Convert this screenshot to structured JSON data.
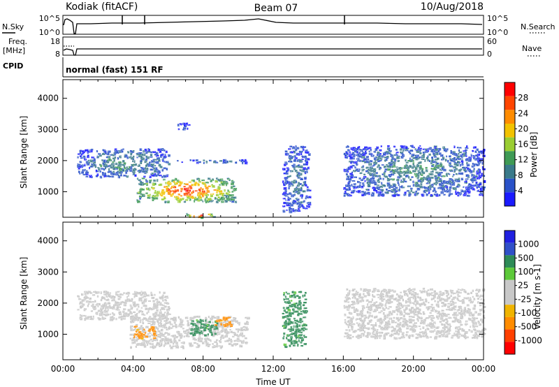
{
  "header": {
    "station": "Kodiak (fitACF)",
    "beam": "Beam 07",
    "date": "10/Aug/2018"
  },
  "nsky_panel": {
    "left_label": "N.Sky",
    "left_ticks": [
      "10^5",
      "10^0"
    ],
    "right_label": "N.Search",
    "right_ticks": [
      "10^5",
      "10^0"
    ]
  },
  "freq_panel": {
    "left_label_line1": "Freq.",
    "left_label_line2": "[MHz]",
    "left_ticks": [
      "18",
      "8"
    ],
    "right_label": "Nave",
    "right_ticks": [
      "60",
      "0"
    ]
  },
  "cpid_panel": {
    "label": "CPID",
    "mode_text": "normal (fast) 151 RF"
  },
  "colors": {
    "power_scale": [
      "#1a1aff",
      "#2a52c8",
      "#3a7a8a",
      "#3f9a55",
      "#9acd32",
      "#f2c200",
      "#ff8c00",
      "#ff4500",
      "#ff0000"
    ],
    "velocity_scale": [
      "#ff0000",
      "#ff4000",
      "#ff8c00",
      "#f0b400",
      "#c8c8c8",
      "#c8c8c8",
      "#5dc93a",
      "#2e8b57",
      "#3050c8",
      "#2020e0"
    ]
  },
  "chart_data": [
    {
      "type": "heatmap",
      "name": "power",
      "ylabel": "Slant Range [km]",
      "xlim": [
        "00:00",
        "24:00"
      ],
      "ylim": [
        180,
        4600
      ],
      "y_ticks": [
        "1000",
        "2000",
        "3000",
        "4000"
      ],
      "colorbar": {
        "label": "Power [dB]",
        "range": [
          0,
          32
        ],
        "ticks": [
          "4",
          "8",
          "12",
          "16",
          "20",
          "24",
          "28"
        ]
      },
      "features": [
        {
          "t_start": 4.2,
          "t_end": 9.8,
          "r_low": 700,
          "r_high": 1450,
          "level_db": 26
        },
        {
          "t_start": 0.8,
          "t_end": 6.0,
          "r_low": 1500,
          "r_high": 2400,
          "level_db": 10
        },
        {
          "t_start": 6.5,
          "t_end": 10.5,
          "r_low": 1950,
          "r_high": 2050,
          "level_db": 8
        },
        {
          "t_start": 12.5,
          "t_end": 14.0,
          "r_low": 400,
          "r_high": 2500,
          "level_db": 8
        },
        {
          "t_start": 16.0,
          "t_end": 24.0,
          "r_low": 900,
          "r_high": 2500,
          "level_db": 10
        },
        {
          "t_start": 6.5,
          "t_end": 7.2,
          "r_low": 3000,
          "r_high": 3250,
          "level_db": 6
        },
        {
          "t_start": 7.0,
          "t_end": 8.6,
          "r_low": 200,
          "r_high": 320,
          "level_db": 28
        }
      ]
    },
    {
      "type": "heatmap",
      "name": "velocity",
      "ylabel": "Slant Range [km]",
      "xlabel": "Time UT",
      "xlim": [
        "00:00",
        "24:00"
      ],
      "ylim": [
        180,
        4600
      ],
      "x_ticks": [
        "00:00",
        "04:00",
        "08:00",
        "12:00",
        "16:00",
        "20:00",
        "00:00"
      ],
      "y_ticks": [
        "1000",
        "2000",
        "3000",
        "4000"
      ],
      "colorbar": {
        "label": "Velocity [m s-1]",
        "ticks": [
          "1000",
          "500",
          "100",
          "25",
          "-25",
          "-100",
          "-500",
          "-1000"
        ]
      },
      "features": [
        {
          "t_start": 3.8,
          "t_end": 10.5,
          "r_low": 600,
          "r_high": 1600,
          "velocity": 0
        },
        {
          "t_start": 4.0,
          "t_end": 5.2,
          "r_low": 900,
          "r_high": 1300,
          "velocity": -150
        },
        {
          "t_start": 7.2,
          "t_end": 8.8,
          "r_low": 1000,
          "r_high": 1500,
          "velocity": 150
        },
        {
          "t_start": 8.6,
          "t_end": 9.6,
          "r_low": 1300,
          "r_high": 1600,
          "velocity": -150
        },
        {
          "t_start": 0.8,
          "t_end": 6.0,
          "r_low": 1500,
          "r_high": 2400,
          "velocity": 0
        },
        {
          "t_start": 12.5,
          "t_end": 13.8,
          "r_low": 600,
          "r_high": 2400,
          "velocity": 150
        },
        {
          "t_start": 16.0,
          "t_end": 24.0,
          "r_low": 900,
          "r_high": 2500,
          "velocity": 0
        }
      ]
    }
  ]
}
